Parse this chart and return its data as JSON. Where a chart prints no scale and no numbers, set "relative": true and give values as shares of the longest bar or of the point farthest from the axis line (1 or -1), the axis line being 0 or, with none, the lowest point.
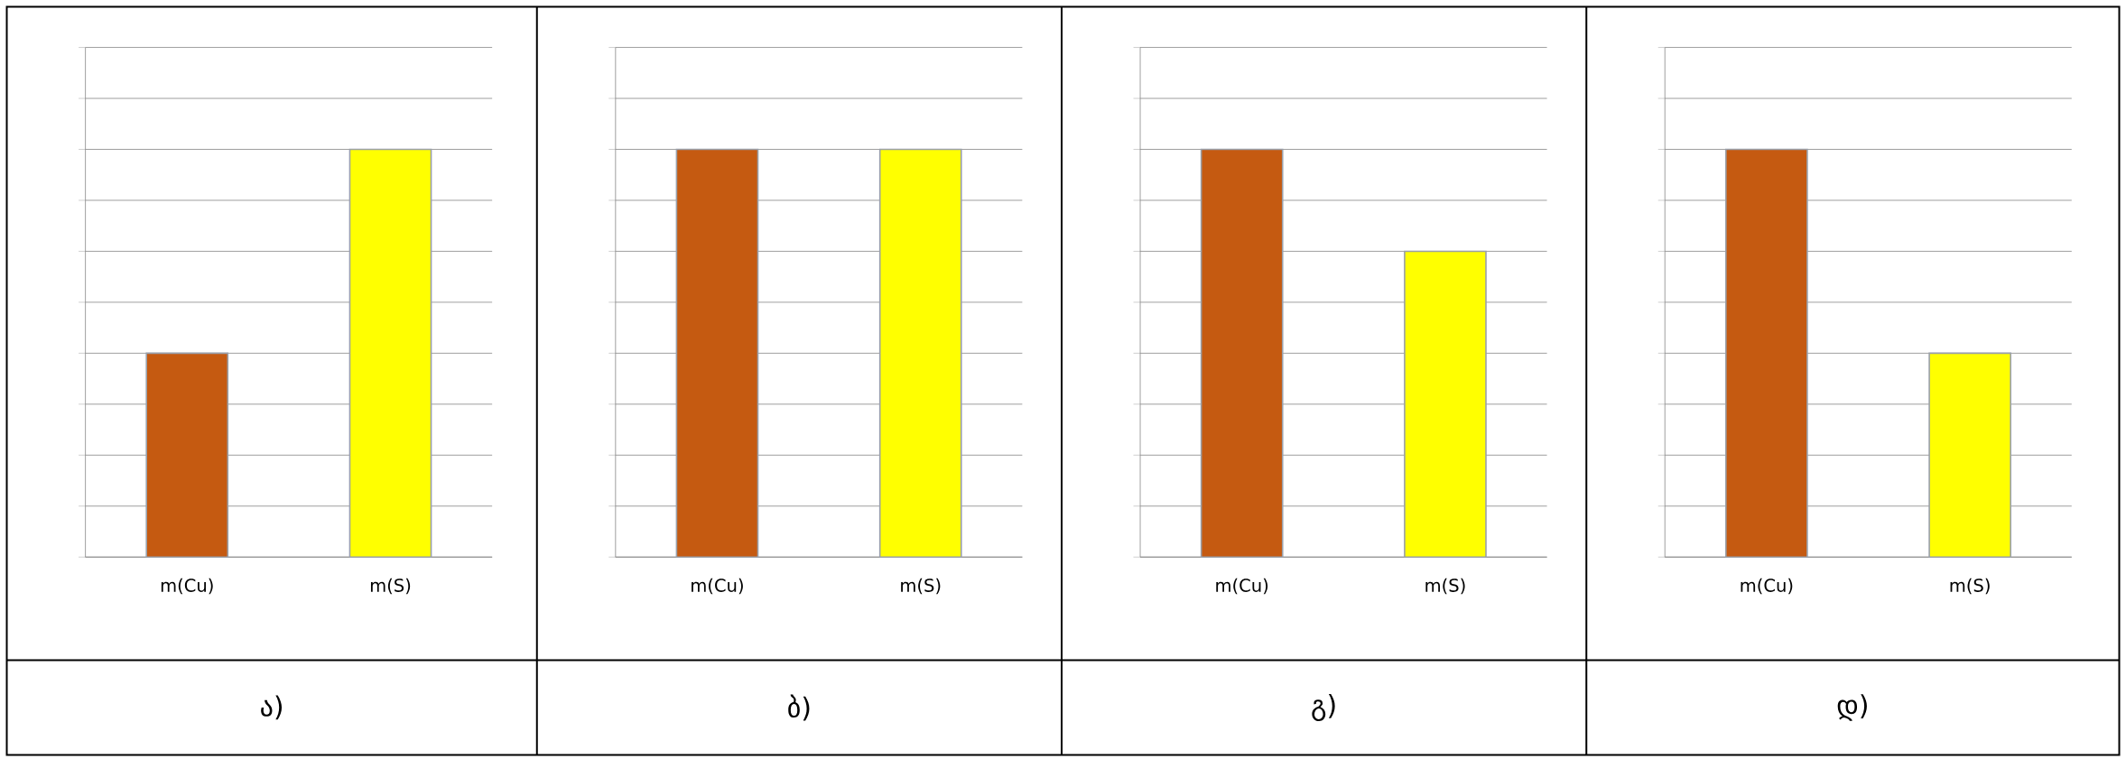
{
  "chart_data": [
    {
      "type": "bar",
      "title": "ა)",
      "categories": [
        "m(Cu)",
        "m(S)"
      ],
      "values": [
        0.5,
        1
      ],
      "colors": [
        "#c55a11",
        "#ffff00"
      ],
      "relative": true,
      "grid": "y"
    },
    {
      "type": "bar",
      "title": "ბ)",
      "categories": [
        "m(Cu)",
        "m(S)"
      ],
      "values": [
        1,
        1
      ],
      "colors": [
        "#c55a11",
        "#ffff00"
      ],
      "relative": true,
      "grid": "y"
    },
    {
      "type": "bar",
      "title": "გ)",
      "categories": [
        "m(Cu)",
        "m(S)"
      ],
      "values": [
        1,
        0.75
      ],
      "colors": [
        "#c55a11",
        "#ffff00"
      ],
      "relative": true,
      "grid": "y"
    },
    {
      "type": "bar",
      "title": "დ)",
      "categories": [
        "m(Cu)",
        "m(S)"
      ],
      "values": [
        1,
        0.5
      ],
      "colors": [
        "#c55a11",
        "#ffff00"
      ],
      "relative": true,
      "grid": "y"
    }
  ]
}
